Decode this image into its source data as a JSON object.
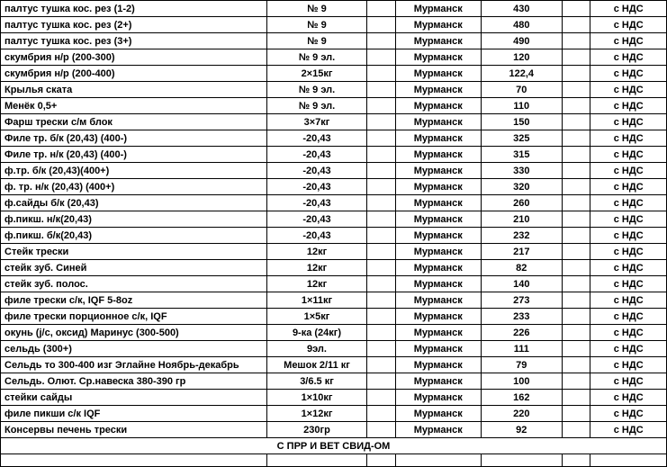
{
  "table": {
    "rows": [
      {
        "name": "палтус тушка кос. рез  (1-2)",
        "package": "№ 9",
        "city": "Мурманск",
        "price": "430",
        "vat": "с НДС"
      },
      {
        "name": "палтус тушка кос. рез   (2+)",
        "package": "№ 9",
        "city": "Мурманск",
        "price": "480",
        "vat": "с НДС"
      },
      {
        "name": "палтус тушка кос. рез   (3+)",
        "package": "№ 9",
        "city": "Мурманск",
        "price": "490",
        "vat": "с НДС"
      },
      {
        "name": "скумбрия н/р (200-300)",
        "package": "№ 9 эл.",
        "city": "Мурманск",
        "price": "120",
        "vat": "с НДС"
      },
      {
        "name": "скумбрия н/р (200-400)",
        "package": "2×15кг",
        "city": "Мурманск",
        "price": "122,4",
        "vat": "с НДС"
      },
      {
        "name": "Крылья ската",
        "package": "№ 9 эл.",
        "city": "Мурманск",
        "price": "70",
        "vat": "с НДС"
      },
      {
        "name": "Менёк 0,5+",
        "package": "№ 9 эл.",
        "city": "Мурманск",
        "price": "110",
        "vat": "с НДС"
      },
      {
        "name": "Фарш трески с/м блок",
        "package": "3×7кг",
        "city": "Мурманск",
        "price": "150",
        "vat": "с НДС"
      },
      {
        "name": "Филе тр. б/к (20,43) (400-)",
        "package": "-20,43",
        "city": "Мурманск",
        "price": "325",
        "vat": "с НДС"
      },
      {
        "name": "Филе тр. н/к (20,43) (400-)",
        "package": "-20,43",
        "city": "Мурманск",
        "price": "315",
        "vat": "с НДС"
      },
      {
        "name": "ф.тр. б/к (20,43)(400+)",
        "package": "-20,43",
        "city": "Мурманск",
        "price": "330",
        "vat": "с НДС"
      },
      {
        "name": "ф. тр.  н/к (20,43) (400+)",
        "package": "-20,43",
        "city": "Мурманск",
        "price": "320",
        "vat": "с НДС"
      },
      {
        "name": "ф.сайды б/к (20,43)",
        "package": "-20,43",
        "city": "Мурманск",
        "price": "260",
        "vat": "с НДС"
      },
      {
        "name": "ф.пикш. н/к(20,43)",
        "package": "-20,43",
        "city": "Мурманск",
        "price": "210",
        "vat": "с НДС"
      },
      {
        "name": "ф.пикш. б/к(20,43)",
        "package": "-20,43",
        "city": "Мурманск",
        "price": "232",
        "vat": "с НДС"
      },
      {
        "name": "Стейк трески",
        "package": "12кг",
        "city": "Мурманск",
        "price": "217",
        "vat": "с НДС"
      },
      {
        "name": "стейк  зуб. Синей",
        "package": "12кг",
        "city": "Мурманск",
        "price": "82",
        "vat": "с НДС"
      },
      {
        "name": "стейк  зуб. полос.",
        "package": "12кг",
        "city": "Мурманск",
        "price": "140",
        "vat": "с НДС"
      },
      {
        "name": "филе трески с/к, IQF  5-8oz",
        "package": "1×11кг",
        "city": "Мурманск",
        "price": "273",
        "vat": "с НДС"
      },
      {
        "name": "филе трески порционное с/к, IQF",
        "package": "1×5кг",
        "city": "Мурманск",
        "price": "233",
        "vat": "с НДС"
      },
      {
        "name": "окунь (j/c, оксид) Маринус (300-500)",
        "package": "9-ка (24кг)",
        "city": "Мурманск",
        "price": "226",
        "vat": "с НДС"
      },
      {
        "name": "сельдь (300+)",
        "package": "9эл.",
        "city": "Мурманск",
        "price": "111",
        "vat": "с НДС"
      },
      {
        "name": "Сельдь то 300-400 изг Эглайне Ноябрь-декабрь",
        "package": "Мешок 2/11 кг",
        "city": "Мурманск",
        "price": "79",
        "vat": "с НДС"
      },
      {
        "name": "Сельдь. Олют. Ср.навеска 380-390 гр",
        "package": "3/6.5 кг",
        "city": "Мурманск",
        "price": "100",
        "vat": "с НДС"
      },
      {
        "name": "стейки сайды",
        "package": "1×10кг",
        "city": "Мурманск",
        "price": "162",
        "vat": "с НДС"
      },
      {
        "name": "филе пикши с/к IQF",
        "package": "1×12кг",
        "city": "Мурманск",
        "price": "220",
        "vat": "с НДС"
      },
      {
        "name": "Консервы печень трески",
        "package": "230гр",
        "city": "Мурманск",
        "price": "92",
        "vat": "с НДС"
      }
    ],
    "footer_text": "С ПРР И ВЕТ СВИД-ОМ"
  }
}
